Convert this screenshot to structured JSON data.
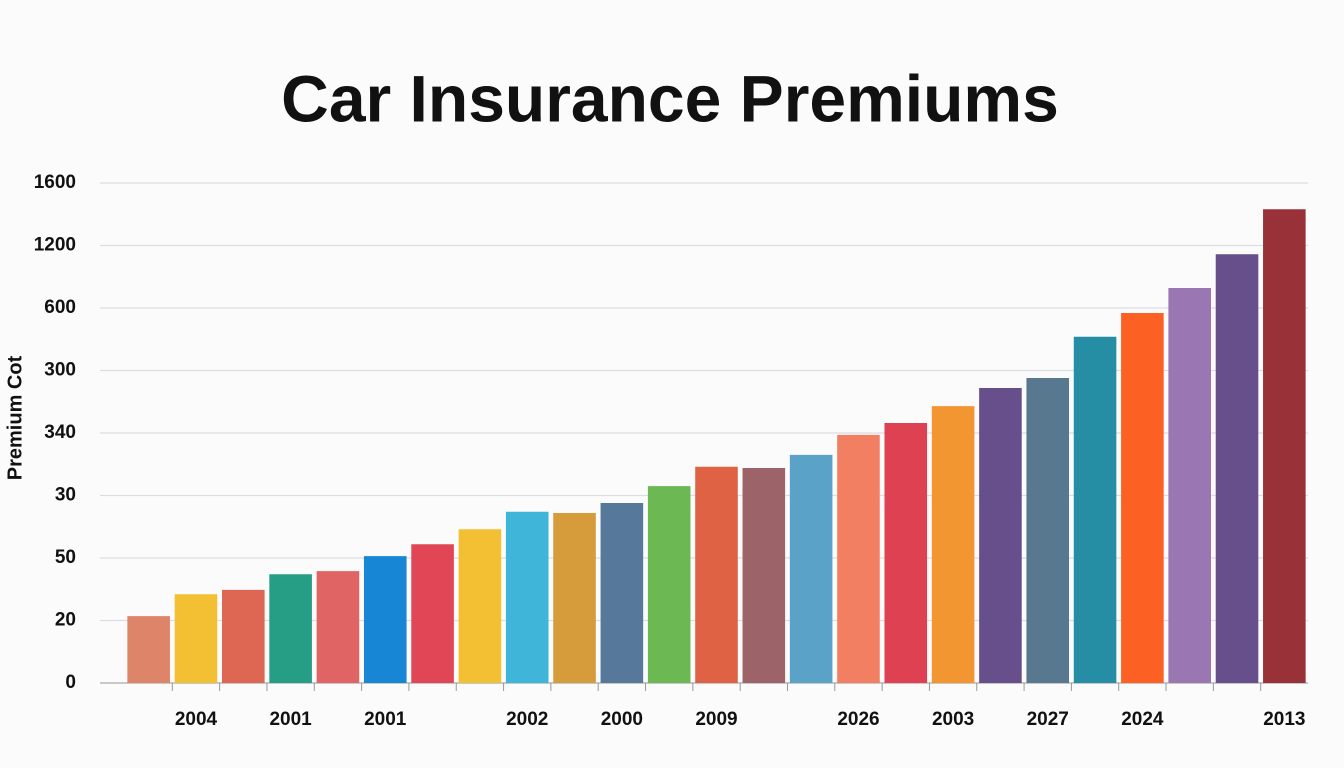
{
  "chart_data": {
    "type": "bar",
    "title": "Car Insurance Premiums",
    "y_label": "Premium Cot",
    "categories": [
      null,
      "2004",
      null,
      "2001",
      null,
      "2001",
      null,
      null,
      "2002",
      null,
      "2000",
      null,
      "2009",
      null,
      null,
      "2026",
      null,
      "2003",
      null,
      "2027",
      null,
      "2024",
      null,
      null,
      "2013"
    ],
    "values": [
      1.07,
      1.42,
      1.49,
      1.74,
      1.79,
      2.03,
      2.22,
      2.46,
      2.74,
      2.72,
      2.88,
      3.15,
      3.46,
      3.44,
      3.65,
      3.97,
      4.16,
      4.43,
      4.72,
      4.88,
      5.54,
      5.92,
      6.32,
      6.86,
      7.58
    ],
    "colors": [
      "#de8468",
      "#f4c033",
      "#de6753",
      "#259e85",
      "#e06464",
      "#1786d4",
      "#e04656",
      "#f4c033",
      "#40b5da",
      "#d69b3a",
      "#56789a",
      "#6cb852",
      "#e06245",
      "#9c6468",
      "#5aa2c8",
      "#f37f62",
      "#de4152",
      "#f29631",
      "#664f8a",
      "#57788e",
      "#268ea4",
      "#fd6023",
      "#9a76b2",
      "#664f8a",
      "#983238"
    ],
    "ylim": [
      0,
      8
    ],
    "yticks": [
      {
        "value": 0,
        "label": "0"
      },
      {
        "value": 1,
        "label": "20"
      },
      {
        "value": 2,
        "label": "50"
      },
      {
        "value": 3,
        "label": "30"
      },
      {
        "value": 4,
        "label": "340"
      },
      {
        "value": 5,
        "label": "300"
      },
      {
        "value": 6,
        "label": "600"
      },
      {
        "value": 7,
        "label": "1200"
      },
      {
        "value": 8,
        "label": "1600"
      }
    ],
    "grid": true
  }
}
